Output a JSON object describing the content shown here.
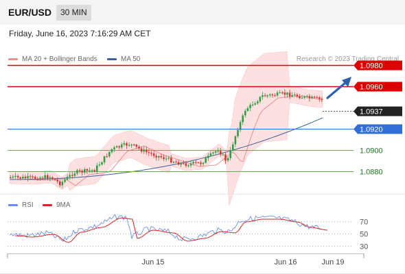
{
  "header": {
    "symbol": "EUR/USD",
    "timeframe": "30 MIN",
    "datetime": "Friday, June 16, 2023 7:16:29 AM CET"
  },
  "legend": {
    "ma20_label": "MA 20 + Bollinger Bands",
    "ma20_color": "#f08c8c",
    "ma50_label": "MA 50",
    "ma50_color": "#3a5fa0",
    "credit": "Research © 2023 Trading Central"
  },
  "levels": [
    {
      "label": "1.0980",
      "price": 1.098,
      "kind": "resistance"
    },
    {
      "label": "1.0960",
      "price": 1.096,
      "kind": "resistance"
    },
    {
      "label": "1.0937",
      "price": 1.0937,
      "kind": "current"
    },
    {
      "label": "1.0920",
      "price": 1.092,
      "kind": "pivot"
    },
    {
      "label": "1.0900",
      "price": 1.09,
      "kind": "support"
    },
    {
      "label": "1.0880",
      "price": 1.088,
      "kind": "support"
    }
  ],
  "colors": {
    "resistance": "#dd0000",
    "pivot": "#2f6fd6",
    "support": "#6aaa55",
    "current": "#222222",
    "up": "#2f9e44",
    "down": "#d63636",
    "band": "#fde1e1",
    "rsi": "#6a8fe0",
    "rsi_ma": "#dd2222",
    "arrow": "#2d5fb0"
  },
  "rsi": {
    "legend_rsi": "RSI",
    "legend_ma": "9MA",
    "ticks": [
      "70",
      "50",
      "30"
    ]
  },
  "x_axis": {
    "labels": [
      "Jun 15",
      "Jun 16",
      "Jun 19"
    ]
  }
}
